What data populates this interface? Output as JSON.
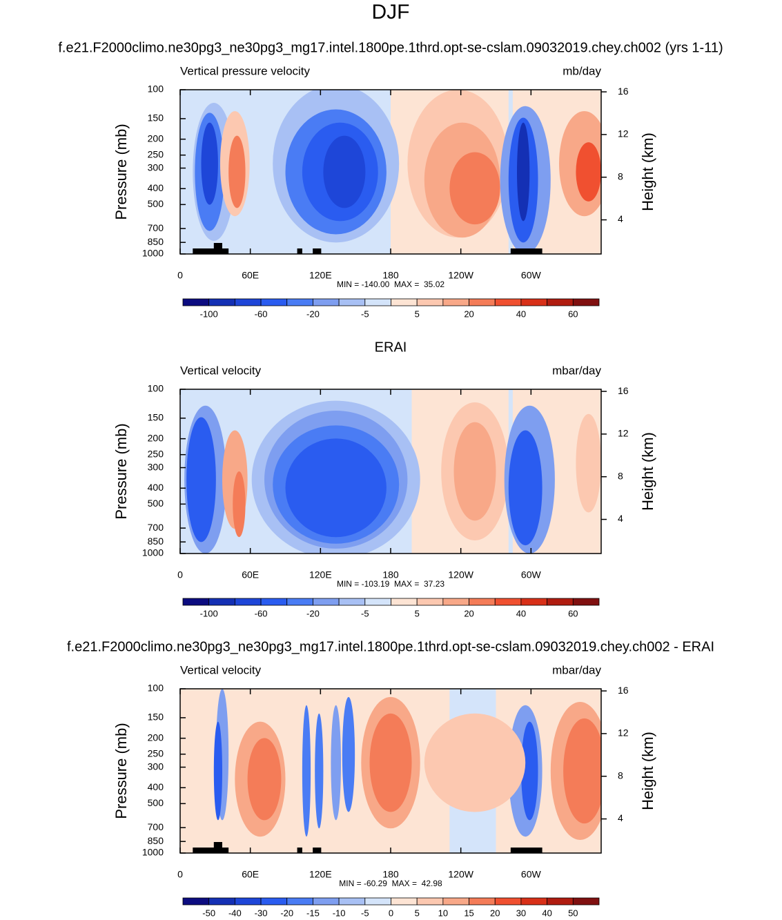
{
  "title": "DJF",
  "chart_data": [
    {
      "type": "contour",
      "title": "f.e21.F2000climo.ne30pg3_ne30pg3_mg17.intel.1800pe.1thrd.opt-se-cslam.09032019.chey.ch002 (yrs 1-11)",
      "left_label": "Vertical pressure velocity",
      "right_label": "mb/day",
      "ylabel": "Pressure (mb)",
      "y2label": "Height (km)",
      "log_y": true,
      "ylim": [
        1000,
        100
      ],
      "yticks": [
        1000,
        850,
        700,
        500,
        400,
        300,
        250,
        200,
        150,
        100
      ],
      "y2lim": [
        0.8,
        16.2
      ],
      "y2ticks": [
        4,
        8,
        12,
        16
      ],
      "xlim": [
        0,
        360
      ],
      "xticks": [
        0,
        {
          "value": 60,
          "label": "60E"
        },
        {
          "value": 120,
          "label": "120E"
        },
        180,
        {
          "value": 240,
          "label": "120W"
        },
        {
          "value": 300,
          "label": "60W"
        }
      ],
      "stats": "MIN = -140.00  MAX =  35.02",
      "colorbar": {
        "levels": [
          -100,
          -60,
          -20,
          -5,
          5,
          20,
          40,
          60
        ],
        "colors": [
          "#0c0c80",
          "#1430b4",
          "#1e46d8",
          "#2a5cf0",
          "#4a7cf4",
          "#7e9ef0",
          "#a8c0f4",
          "#d4e4fa",
          "#fde4d4",
          "#fcc8b0",
          "#f8a888",
          "#f47c58",
          "#f05030",
          "#d83018",
          "#b01c10",
          "#801010"
        ]
      }
    },
    {
      "type": "contour",
      "title": "ERAI",
      "left_label": "Vertical velocity",
      "right_label": "mbar/day",
      "ylabel": "Pressure (mb)",
      "y2label": "Height (km)",
      "log_y": true,
      "ylim": [
        1000,
        100
      ],
      "yticks": [
        1000,
        850,
        700,
        500,
        400,
        300,
        250,
        200,
        150,
        100
      ],
      "y2lim": [
        0.8,
        16.2
      ],
      "y2ticks": [
        4,
        8,
        12,
        16
      ],
      "xlim": [
        0,
        360
      ],
      "xticks": [
        0,
        {
          "value": 60,
          "label": "60E"
        },
        {
          "value": 120,
          "label": "120E"
        },
        180,
        {
          "value": 240,
          "label": "120W"
        },
        {
          "value": 300,
          "label": "60W"
        }
      ],
      "stats": "MIN = -103.19  MAX =  37.23",
      "colorbar": {
        "levels": [
          -100,
          -60,
          -20,
          -5,
          5,
          20,
          40,
          60
        ],
        "colors": [
          "#0c0c80",
          "#1430b4",
          "#1e46d8",
          "#2a5cf0",
          "#4a7cf4",
          "#7e9ef0",
          "#a8c0f4",
          "#d4e4fa",
          "#fde4d4",
          "#fcc8b0",
          "#f8a888",
          "#f47c58",
          "#f05030",
          "#d83018",
          "#b01c10",
          "#801010"
        ]
      }
    },
    {
      "type": "contour",
      "title": "f.e21.F2000climo.ne30pg3_ne30pg3_mg17.intel.1800pe.1thrd.opt-se-cslam.09032019.chey.ch002 - ERAI",
      "left_label": "Vertical velocity",
      "right_label": "mbar/day",
      "ylabel": "Pressure (mb)",
      "y2label": "Height (km)",
      "log_y": true,
      "ylim": [
        1000,
        100
      ],
      "yticks": [
        1000,
        850,
        700,
        500,
        400,
        300,
        250,
        200,
        150,
        100
      ],
      "y2lim": [
        0.8,
        16.2
      ],
      "y2ticks": [
        4,
        8,
        12,
        16
      ],
      "xlim": [
        0,
        360
      ],
      "xticks": [
        0,
        {
          "value": 60,
          "label": "60E"
        },
        {
          "value": 120,
          "label": "120E"
        },
        180,
        {
          "value": 240,
          "label": "120W"
        },
        {
          "value": 300,
          "label": "60W"
        }
      ],
      "stats": "MIN = -60.29  MAX =  42.98",
      "colorbar": {
        "levels": [
          -50,
          -40,
          -30,
          -20,
          -15,
          -10,
          -5,
          0,
          5,
          10,
          15,
          20,
          30,
          40,
          50
        ],
        "colors": [
          "#0c0c80",
          "#1430b4",
          "#1e46d8",
          "#2a5cf0",
          "#4a7cf4",
          "#7e9ef0",
          "#a8c0f4",
          "#d4e4fa",
          "#fde4d4",
          "#fcc8b0",
          "#f8a888",
          "#f47c58",
          "#f05030",
          "#d83018",
          "#b01c10",
          "#801010"
        ]
      }
    }
  ]
}
